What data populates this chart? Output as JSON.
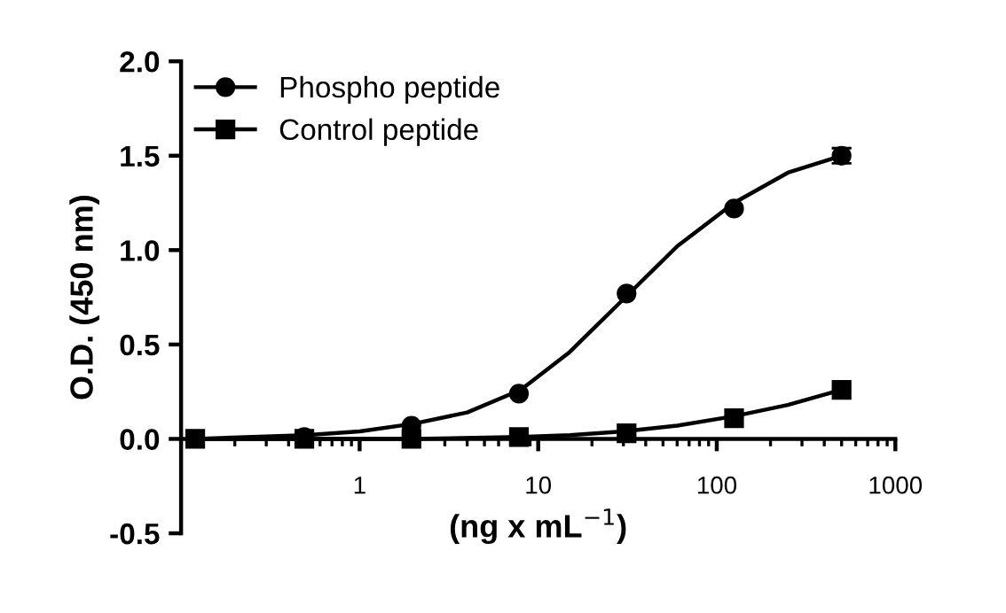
{
  "chart_data": {
    "type": "line",
    "xlabel": "(ng x mL$^{−1}$)",
    "ylabel": "O.D. (450 nm)",
    "x": [
      0.12,
      0.49,
      1.95,
      7.8,
      31.25,
      125,
      500
    ],
    "series": [
      {
        "name": "Phospho peptide",
        "type": "scatter",
        "color": "#000000",
        "marker": "circle",
        "values": [
          null,
          0.01,
          0.07,
          0.24,
          0.77,
          1.22,
          1.5
        ],
        "errors": [
          null,
          null,
          null,
          null,
          null,
          null,
          0.04
        ]
      },
      {
        "name": "Control peptide",
        "type": "scatter",
        "color": "#000000",
        "marker": "square",
        "values": [
          0.0,
          0.0,
          0.0,
          0.01,
          0.03,
          0.11,
          0.26
        ]
      },
      {
        "color": "#000000",
        "x": [
          0.12,
          0.25,
          0.5,
          1,
          2,
          4,
          8,
          15,
          30,
          60,
          125,
          250,
          500
        ],
        "values": [
          0.0,
          0.01,
          0.02,
          0.04,
          0.08,
          0.14,
          0.26,
          0.46,
          0.74,
          1.02,
          1.25,
          1.41,
          1.5
        ]
      },
      {
        "color": "#000000",
        "x": [
          0.12,
          0.5,
          2,
          8,
          15,
          30,
          60,
          125,
          250,
          500
        ],
        "values": [
          0.0,
          0.0,
          0.0,
          0.01,
          0.02,
          0.04,
          0.07,
          0.12,
          0.18,
          0.26
        ]
      }
    ],
    "log": "x",
    "xlim": [
      0.1,
      1000
    ],
    "xticks": [
      1,
      10,
      100,
      1000
    ],
    "ylim": [
      -0.5,
      2.0
    ],
    "yticks": [
      {
        "value": -0.5,
        "label": "-0.5"
      },
      {
        "value": 0,
        "label": "0.0"
      },
      {
        "value": 0.5,
        "label": "0.5"
      },
      {
        "value": 1.0,
        "label": "1.0"
      },
      {
        "value": 1.5,
        "label": "1.5"
      },
      {
        "value": 2.0,
        "label": "2.0"
      }
    ],
    "grid": false,
    "legend": "top left",
    "line_style": "solid"
  }
}
